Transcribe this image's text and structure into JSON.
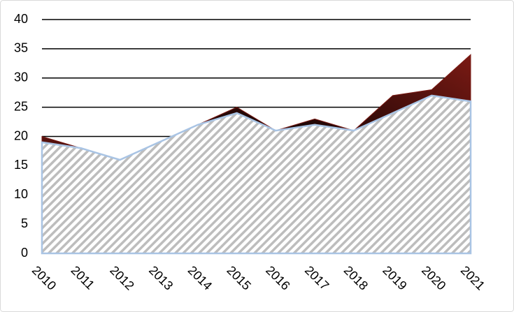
{
  "chart_data": {
    "type": "area",
    "categories": [
      "2010",
      "2011",
      "2012",
      "2013",
      "2014",
      "2015",
      "2016",
      "2017",
      "2018",
      "2019",
      "2020",
      "2021"
    ],
    "series": [
      {
        "color": "#7a1a14",
        "values": [
          20,
          18,
          16,
          19,
          22,
          25,
          21,
          23,
          21,
          27,
          28,
          34
        ]
      },
      {
        "color": "#c0c0c0",
        "values": [
          19,
          18,
          16,
          19,
          22,
          24,
          21,
          22,
          21,
          24,
          27,
          26
        ]
      }
    ],
    "ylim": [
      0,
      40
    ],
    "yticks": [
      0,
      5,
      10,
      15,
      20,
      25,
      30,
      35,
      40
    ],
    "grid": true
  }
}
